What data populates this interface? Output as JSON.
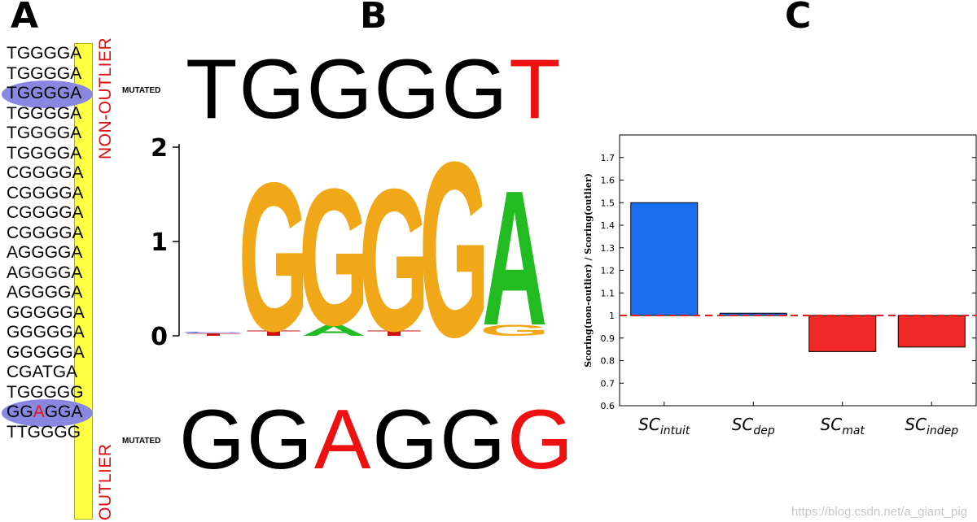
{
  "panels": {
    "a": "A",
    "b": "B",
    "c": "C"
  },
  "panel_a": {
    "sequences": [
      {
        "prefix": "TGGGG",
        "last": "A"
      },
      {
        "prefix": "TGGGG",
        "last": "A"
      },
      {
        "prefix": "TGGGG",
        "last": "A",
        "highlight": true
      },
      {
        "prefix": "TGGGG",
        "last": "A"
      },
      {
        "prefix": "TGGGG",
        "last": "A"
      },
      {
        "prefix": "TGGGG",
        "last": "A"
      },
      {
        "prefix": "CGGGG",
        "last": "A"
      },
      {
        "prefix": "CGGGG",
        "last": "A"
      },
      {
        "prefix": "CGGGG",
        "last": "A"
      },
      {
        "prefix": "CGGGG",
        "last": "A"
      },
      {
        "prefix": "AGGGG",
        "last": "A"
      },
      {
        "prefix": "AGGGG",
        "last": "A"
      },
      {
        "prefix": "AGGGG",
        "last": "A"
      },
      {
        "prefix": "GGGGG",
        "last": "A"
      },
      {
        "prefix": "GGGGG",
        "last": "A"
      },
      {
        "prefix": "GGGGG",
        "last": "A"
      },
      {
        "prefix": "CGATG",
        "last": "A"
      },
      {
        "prefix": "TGGGG",
        "last": "G"
      },
      {
        "prefix": "GGAGG",
        "last": "A",
        "highlight": true,
        "red_index": 2
      },
      {
        "prefix": "TTGGG",
        "last": "G"
      }
    ],
    "non_outlier_label": "NON-OUTLIER",
    "outlier_label": "OUTLIER"
  },
  "panel_b": {
    "mutated_label": "MUTATED",
    "top_sequence": [
      {
        "ch": "T",
        "color": "#000000"
      },
      {
        "ch": "G",
        "color": "#000000"
      },
      {
        "ch": "G",
        "color": "#000000"
      },
      {
        "ch": "G",
        "color": "#000000"
      },
      {
        "ch": "G",
        "color": "#000000"
      },
      {
        "ch": "T",
        "color": "#ee1111"
      }
    ],
    "bottom_sequence": [
      {
        "ch": "G",
        "color": "#000000"
      },
      {
        "ch": "G",
        "color": "#000000"
      },
      {
        "ch": "A",
        "color": "#ee1111"
      },
      {
        "ch": "G",
        "color": "#000000"
      },
      {
        "ch": "G",
        "color": "#000000"
      },
      {
        "ch": "G",
        "color": "#ee1111"
      }
    ],
    "logo": {
      "yticks": [
        "0",
        "1",
        "2"
      ],
      "positions": [
        "1",
        "2",
        "3",
        "4",
        "5",
        "6"
      ],
      "colors": {
        "A": "#22bb22",
        "C": "#2233cc",
        "G": "#f0a818",
        "T": "#cc1111"
      },
      "stacks": [
        [
          {
            "ch": "T",
            "h": 0.03
          },
          {
            "ch": "C",
            "h": 0.01
          }
        ],
        [
          {
            "ch": "T",
            "h": 0.06
          },
          {
            "ch": "G",
            "h": 1.63
          }
        ],
        [
          {
            "ch": "A",
            "h": 0.12
          },
          {
            "ch": "G",
            "h": 1.5
          }
        ],
        [
          {
            "ch": "T",
            "h": 0.06
          },
          {
            "ch": "G",
            "h": 1.56
          }
        ],
        [
          {
            "ch": "G",
            "h": 1.92
          }
        ],
        [
          {
            "ch": "G",
            "h": 0.12
          },
          {
            "ch": "A",
            "h": 1.48
          }
        ]
      ]
    }
  },
  "chart_data": {
    "type": "bar",
    "categories": [
      "SC_intuit",
      "SC_dep",
      "SC_mat",
      "SC_indep"
    ],
    "category_labels": [
      {
        "base": "SC",
        "sub": "intuit"
      },
      {
        "base": "SC",
        "sub": "dep"
      },
      {
        "base": "SC",
        "sub": "mat"
      },
      {
        "base": "SC",
        "sub": "indep"
      }
    ],
    "values": [
      1.5,
      1.01,
      0.84,
      0.86
    ],
    "baseline": 1.0,
    "bar_colors_above": "#1a6ef0",
    "bar_colors_below": "#f02828",
    "ylabel": "Scoring(non-outlier) / Scoring(outlier)",
    "ylim": [
      0.6,
      1.8
    ],
    "yticks": [
      "0.6",
      "0.7",
      "0.8",
      "0.9",
      "1",
      "1.1",
      "1.2",
      "1.3",
      "1.4",
      "1.5",
      "1.6",
      "1.7"
    ],
    "reference_line": {
      "value": 1.0,
      "color": "#e02020",
      "style": "dashed"
    }
  },
  "watermark": "https://blog.csdn.net/a_giant_pig"
}
